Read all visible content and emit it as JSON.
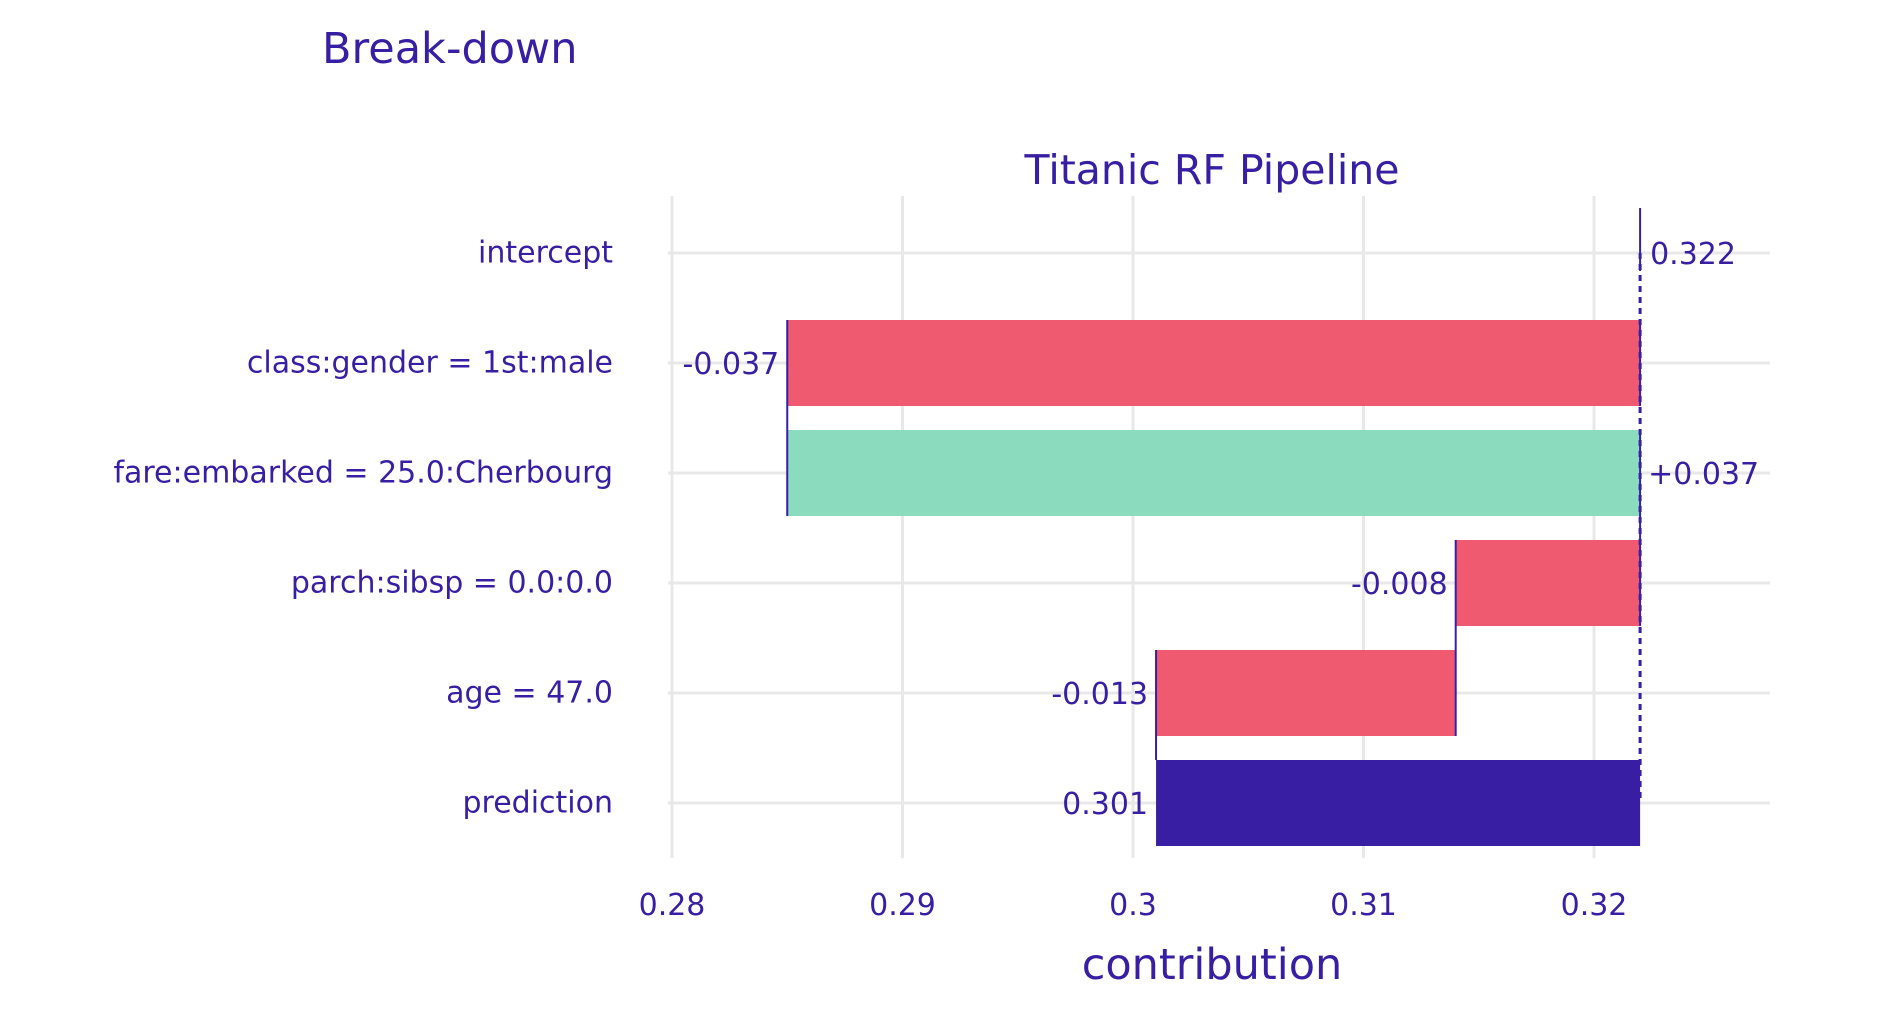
{
  "title": "Break-down",
  "chart_data": {
    "type": "waterfall",
    "subtitle": "Titanic RF Pipeline",
    "xlabel": "contribution",
    "xlim": [
      0.2755,
      0.3255
    ],
    "xticks": [
      0.28,
      0.29,
      0.3,
      0.31,
      0.32
    ],
    "xtick_labels": [
      "0.28",
      "0.29",
      "0.3",
      "0.31",
      "0.32"
    ],
    "grid": true,
    "categories": [
      "intercept",
      "class:gender = 1st:male",
      "fare:embarked = 25.0:Cherbourg",
      "parch:sibsp = 0.0:0.0",
      "age = 47.0",
      "prediction"
    ],
    "bars": [
      {
        "label": "intercept",
        "start": 0.322,
        "end": 0.322,
        "text": "0.322",
        "kind": "intercept"
      },
      {
        "label": "class:gender = 1st:male",
        "start": 0.322,
        "end": 0.285,
        "text": "-0.037",
        "kind": "negative"
      },
      {
        "label": "fare:embarked = 25.0:Cherbourg",
        "start": 0.285,
        "end": 0.322,
        "text": "+0.037",
        "kind": "positive"
      },
      {
        "label": "parch:sibsp = 0.0:0.0",
        "start": 0.322,
        "end": 0.314,
        "text": "-0.008",
        "kind": "negative"
      },
      {
        "label": "age = 47.0",
        "start": 0.314,
        "end": 0.301,
        "text": "-0.013",
        "kind": "negative"
      },
      {
        "label": "prediction",
        "start": 0.301,
        "end": 0.322,
        "text": "0.301",
        "kind": "prediction"
      }
    ],
    "baseline": 0.322,
    "colors": {
      "negative": "#f05a71",
      "positive": "#8bdcbe",
      "prediction": "#371ea3",
      "text": "#371ea3",
      "grid": "#e8e8e8"
    }
  }
}
